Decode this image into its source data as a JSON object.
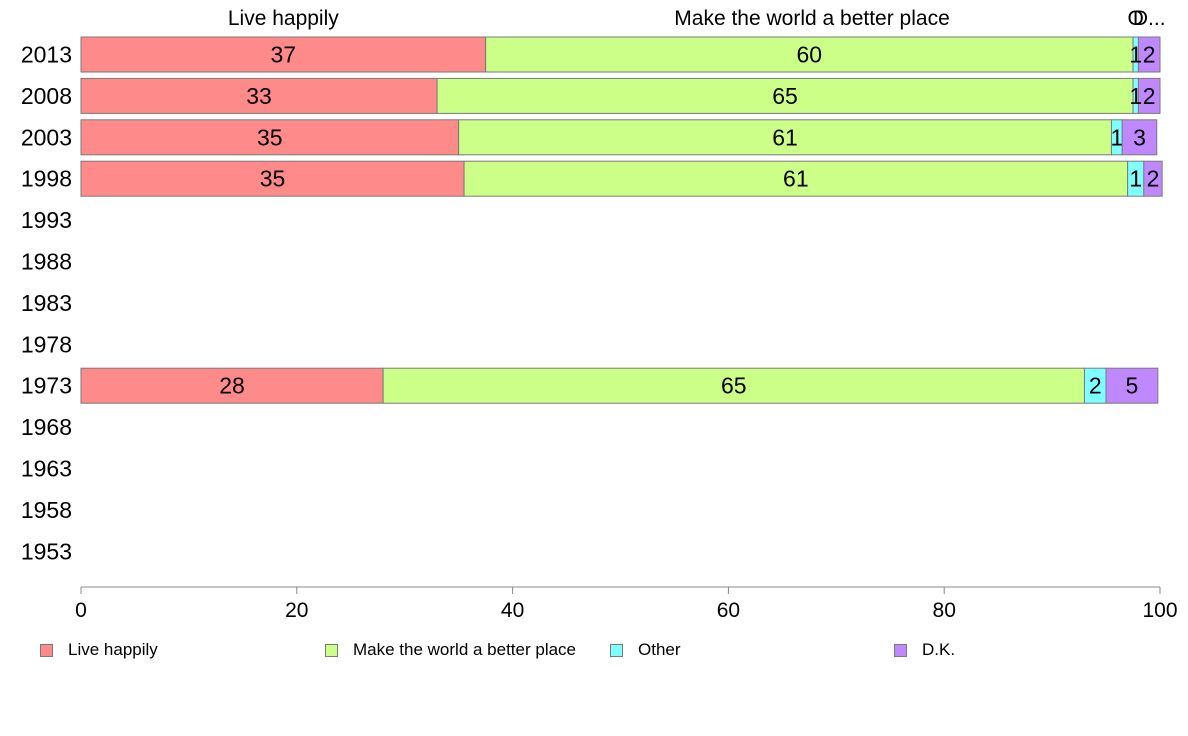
{
  "chart_data": {
    "type": "bar",
    "orientation": "horizontal",
    "stacked": true,
    "categories": [
      "2013",
      "2008",
      "2003",
      "1998",
      "1993",
      "1988",
      "1983",
      "1978",
      "1973",
      "1968",
      "1963",
      "1958",
      "1953"
    ],
    "series": [
      {
        "name": "Live happily",
        "color": "#ff8a8a",
        "values": [
          37.5,
          33,
          35,
          35.5,
          null,
          null,
          null,
          null,
          28,
          null,
          null,
          null,
          null
        ],
        "labels": [
          "37",
          "33",
          "35",
          "35",
          "",
          "",
          "",
          "",
          "28",
          "",
          "",
          "",
          ""
        ]
      },
      {
        "name": "Make the world a better place",
        "color": "#ccff88",
        "values": [
          60,
          64.5,
          60.5,
          61.5,
          null,
          null,
          null,
          null,
          65,
          null,
          null,
          null,
          null
        ],
        "labels": [
          "60",
          "65",
          "61",
          "61",
          "",
          "",
          "",
          "",
          "65",
          "",
          "",
          "",
          ""
        ]
      },
      {
        "name": "Other",
        "color": "#80ffff",
        "values": [
          0.5,
          0.5,
          1,
          1.5,
          null,
          null,
          null,
          null,
          2,
          null,
          null,
          null,
          null
        ],
        "labels": [
          "",
          "",
          "1",
          "1",
          "",
          "",
          "",
          "",
          "2",
          "",
          "",
          "",
          ""
        ]
      },
      {
        "name": "D.K.",
        "color": "#bf88ff",
        "values": [
          2,
          2,
          3.2,
          1.7,
          null,
          null,
          null,
          null,
          4.8,
          null,
          null,
          null,
          null
        ],
        "labels": [
          "2",
          "2",
          "3",
          "2",
          "",
          "",
          "",
          "",
          "5",
          "",
          "",
          "",
          ""
        ]
      }
    ],
    "top_labels": [
      {
        "text": "Live happily",
        "at": 18.75
      },
      {
        "text": "Make the world a better place",
        "at": 67.75
      },
      {
        "text": "O",
        "at": 97.75
      },
      {
        "text": "D...",
        "at": 99
      }
    ],
    "row_overlap_labels": [
      {
        "row": "2013",
        "text": "1",
        "at": 97.75
      },
      {
        "row": "2008",
        "text": "1",
        "at": 97.75
      }
    ],
    "xlim": [
      0,
      100
    ],
    "xticks": [
      0,
      20,
      40,
      60,
      80,
      100
    ],
    "grid": false,
    "legend_position": "bottom"
  }
}
